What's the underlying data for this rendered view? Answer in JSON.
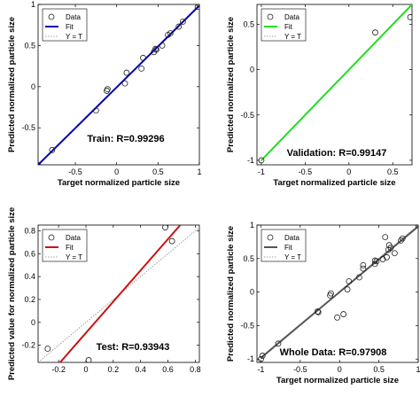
{
  "chart_data": [
    {
      "type": "scatter",
      "xlabel": "Target normalized particle size",
      "ylabel": "Predicted normalized particle size",
      "annotation": "Train: R=0.99296",
      "xlim": [
        -0.95,
        1.0
      ],
      "ylim": [
        -0.95,
        1.0
      ],
      "xticks": [
        "-0.5",
        "0",
        "0.5",
        "1"
      ],
      "yticks": [
        "-0.5",
        "0",
        "0.5",
        "1"
      ],
      "xtick_values": [
        -0.5,
        0,
        0.5,
        1
      ],
      "ytick_values": [
        -0.5,
        0,
        0.5,
        1
      ],
      "fit_color": "#0000b4",
      "legend": [
        "Data",
        "Fit",
        "Y = T"
      ],
      "legend_position": "top-left",
      "fit": [
        [
          -0.95,
          -0.95
        ],
        [
          1.0,
          0.985
        ]
      ],
      "identity": [
        [
          -0.95,
          -0.95
        ],
        [
          1.0,
          1.0
        ]
      ],
      "points": [
        [
          -0.95,
          -0.95
        ],
        [
          -0.78,
          -0.77
        ],
        [
          -0.25,
          -0.29
        ],
        [
          -0.12,
          -0.05
        ],
        [
          -0.11,
          -0.03
        ],
        [
          0.1,
          0.04
        ],
        [
          0.12,
          0.17
        ],
        [
          0.3,
          0.22
        ],
        [
          0.32,
          0.35
        ],
        [
          0.45,
          0.42
        ],
        [
          0.47,
          0.46
        ],
        [
          0.48,
          0.45
        ],
        [
          0.55,
          0.5
        ],
        [
          0.62,
          0.63
        ],
        [
          0.65,
          0.65
        ],
        [
          0.75,
          0.73
        ],
        [
          0.8,
          0.79
        ],
        [
          0.98,
          0.97
        ],
        [
          1.0,
          1.0
        ]
      ]
    },
    {
      "type": "scatter",
      "xlabel": "Target normalized particle size",
      "ylabel": "Predicted normalized particle size",
      "annotation": "Validation: R=0.99147",
      "xlim": [
        -1.05,
        0.72
      ],
      "ylim": [
        -1.05,
        0.72
      ],
      "xticks": [
        "-1",
        "-0.5",
        "0",
        "0.5"
      ],
      "yticks": [
        "-1",
        "-0.5",
        "0",
        "0.5"
      ],
      "xtick_values": [
        -1,
        -0.5,
        0,
        0.5
      ],
      "ytick_values": [
        -1,
        -0.5,
        0,
        0.5
      ],
      "fit_color": "#22dd22",
      "legend": [
        "Data",
        "Fit",
        "Y = T"
      ],
      "legend_position": "top-left",
      "fit": [
        [
          -1.0,
          -1.0
        ],
        [
          0.72,
          0.72
        ]
      ],
      "identity": [
        [
          -1.05,
          -1.05
        ],
        [
          0.72,
          0.72
        ]
      ],
      "points": [
        [
          -1.0,
          -1.0
        ],
        [
          0.3,
          0.41
        ],
        [
          0.7,
          0.58
        ]
      ]
    },
    {
      "type": "scatter",
      "xlabel": "",
      "ylabel": "Predicted value for normalized particle size",
      "annotation": "Test: R=0.93943",
      "xlim": [
        -0.35,
        0.83
      ],
      "ylim": [
        -0.35,
        0.85
      ],
      "xticks": [
        "-0.2",
        "0",
        "0.2",
        "0.4",
        "0.6",
        "0.8"
      ],
      "yticks": [
        "-0.2",
        "0",
        "0.2",
        "0.4",
        "0.6",
        "0.8"
      ],
      "xtick_values": [
        -0.2,
        0,
        0.2,
        0.4,
        0.6,
        0.8
      ],
      "ytick_values": [
        -0.2,
        0,
        0.2,
        0.4,
        0.6,
        0.8
      ],
      "fit_color": "#cc1111",
      "legend": [
        "Data",
        "Fit",
        "Y = T"
      ],
      "legend_position": "top-left",
      "fit": [
        [
          -0.35,
          -0.57
        ],
        [
          0.69,
          0.85
        ]
      ],
      "identity": [
        [
          -0.35,
          -0.35
        ],
        [
          0.83,
          0.83
        ]
      ],
      "points": [
        [
          -0.28,
          -0.23
        ],
        [
          0.02,
          -0.33
        ],
        [
          0.58,
          0.83
        ],
        [
          0.63,
          0.71
        ]
      ]
    },
    {
      "type": "scatter",
      "xlabel": "Target normalized particle size",
      "ylabel": "Predicted normalized particle size",
      "annotation": "Whole Data: R=0.97908",
      "xlim": [
        -1.05,
        1.0
      ],
      "ylim": [
        -1.05,
        1.0
      ],
      "xticks": [
        "-1",
        "-0.5",
        "0",
        "0.5",
        "1"
      ],
      "yticks": [
        "-1",
        "-0.5",
        "0",
        "0.5",
        "1"
      ],
      "xtick_values": [
        -1,
        -0.5,
        0,
        0.5,
        1
      ],
      "ytick_values": [
        -1,
        -0.5,
        0,
        0.5,
        1
      ],
      "fit_color": "#555555",
      "legend": [
        "Data",
        "Fit",
        "Y = T"
      ],
      "legend_position": "top-left",
      "fit": [
        [
          -1.0,
          -0.98
        ],
        [
          1.0,
          0.98
        ]
      ],
      "identity": [
        [
          -1.05,
          -1.05
        ],
        [
          1.0,
          1.0
        ]
      ],
      "points": [
        [
          -1.0,
          -1.0
        ],
        [
          -0.98,
          -0.95
        ],
        [
          -0.78,
          -0.77
        ],
        [
          -0.28,
          -0.29
        ],
        [
          -0.27,
          -0.3
        ],
        [
          -0.12,
          -0.05
        ],
        [
          -0.11,
          -0.02
        ],
        [
          -0.03,
          -0.38
        ],
        [
          0.05,
          -0.33
        ],
        [
          0.1,
          0.04
        ],
        [
          0.12,
          0.16
        ],
        [
          0.25,
          0.22
        ],
        [
          0.3,
          0.4
        ],
        [
          0.3,
          0.35
        ],
        [
          0.45,
          0.42
        ],
        [
          0.45,
          0.47
        ],
        [
          0.47,
          0.46
        ],
        [
          0.55,
          0.49
        ],
        [
          0.58,
          0.82
        ],
        [
          0.6,
          0.52
        ],
        [
          0.62,
          0.63
        ],
        [
          0.63,
          0.7
        ],
        [
          0.65,
          0.66
        ],
        [
          0.7,
          0.58
        ],
        [
          0.78,
          0.77
        ],
        [
          0.8,
          0.8
        ],
        [
          1.0,
          1.0
        ]
      ]
    }
  ]
}
